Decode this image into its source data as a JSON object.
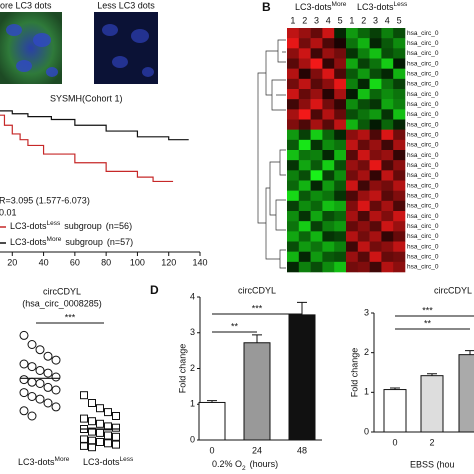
{
  "panel_labels": [
    "B",
    "D"
  ],
  "images": [
    {
      "label": "ore LC3 dots"
    },
    {
      "label": "Less LC3 dots"
    }
  ],
  "chart_data": [
    {
      "type": "survival",
      "title": "SYSMH(Cohort 1)",
      "annotations": [
        "R=3.095 (1.577-6.073)",
        "0.01"
      ],
      "xlim": [
        0,
        140
      ],
      "xticks": [
        20,
        40,
        60,
        80,
        100,
        120,
        140
      ],
      "ylim": [
        0,
        100
      ],
      "series": [
        {
          "name": "LC3-dots",
          "name_sup": "Less",
          "group": "subgroup",
          "n": "(n=56)",
          "color": "#c62828",
          "x": [
            0,
            8,
            15,
            20,
            25,
            30,
            40,
            60,
            80,
            100,
            110
          ],
          "y": [
            100,
            95,
            88,
            82,
            78,
            74,
            68,
            62,
            56,
            52,
            49
          ]
        },
        {
          "name": "LC3-dots",
          "name_sup": "More",
          "group": "subgroup",
          "n": "(n=57)",
          "color": "#111111",
          "x": [
            0,
            10,
            20,
            30,
            45,
            60,
            80,
            100,
            120
          ],
          "y": [
            100,
            98,
            96,
            94,
            92,
            88,
            84,
            80,
            78
          ]
        }
      ]
    },
    {
      "type": "dotplot",
      "title": "circCDYL",
      "subtitle": "(hsa_circ_0008285)",
      "annotation": "***",
      "categories": [
        "LC3-dots",
        "LC3-dots"
      ],
      "category_sups": [
        "More",
        "Less"
      ],
      "ylim": [
        0,
        10
      ],
      "markers": [
        "circle",
        "square"
      ],
      "means": [
        5.9,
        2.0
      ],
      "values": [
        [
          9.2,
          8.5,
          8.1,
          7.6,
          7.3,
          7.0,
          6.8,
          6.5,
          6.3,
          6.0,
          5.8,
          5.6,
          5.5,
          5.2,
          5.0,
          4.8,
          4.5,
          4.3,
          4.0,
          3.7,
          3.4,
          3.0
        ],
        [
          4.6,
          4.0,
          3.6,
          3.3,
          3.0,
          2.8,
          2.6,
          2.4,
          2.2,
          2.1,
          2.0,
          1.8,
          1.7,
          1.5,
          1.4,
          1.2,
          1.1,
          1.0,
          0.9,
          0.8,
          0.7,
          0.6
        ]
      ]
    },
    {
      "type": "heatmap",
      "zlim": [
        -2,
        2
      ],
      "high_color": "#ff1a1a",
      "low_color": "#1aff1a",
      "column_groups": [
        {
          "label": "LC3-dots",
          "sup": "More"
        },
        {
          "label": "LC3-dots",
          "sup": "Less"
        }
      ],
      "columns": [
        "1",
        "2",
        "3",
        "4",
        "5",
        "1",
        "2",
        "3",
        "4",
        "5"
      ],
      "rows": [
        "hsa_circ_0",
        "hsa_circ_0",
        "hsa_circ_0",
        "hsa_circ_0",
        "hsa_circ_0",
        "hsa_circ_0",
        "hsa_circ_0",
        "hsa_circ_0",
        "hsa_circ_0",
        "hsa_circ_0",
        "hsa_circ_0",
        "hsa_circ_0",
        "hsa_circ_0",
        "hsa_circ_0",
        "hsa_circ_0",
        "hsa_circ_0",
        "hsa_circ_0",
        "hsa_circ_0",
        "hsa_circ_0",
        "hsa_circ_0",
        "hsa_circ_0",
        "hsa_circ_0",
        "hsa_circ_0",
        "hsa_circ_0"
      ],
      "values": [
        [
          1.5,
          1.2,
          0.8,
          1.6,
          -0.3,
          -1.2,
          -0.8,
          -0.5,
          -1.0,
          -0.6
        ],
        [
          1.8,
          0.9,
          1.4,
          0.6,
          0.2,
          -0.9,
          -1.4,
          -0.3,
          -0.7,
          -1.1
        ],
        [
          1.1,
          1.6,
          0.5,
          1.2,
          0.9,
          -0.4,
          -1.0,
          -1.5,
          -0.6,
          -0.8
        ],
        [
          0.7,
          1.3,
          1.9,
          0.4,
          1.1,
          -1.3,
          -0.5,
          -0.9,
          -1.6,
          -0.2
        ],
        [
          1.4,
          0.3,
          1.0,
          1.7,
          0.6,
          -0.7,
          -1.2,
          -0.6,
          -0.3,
          -1.4
        ],
        [
          0.9,
          1.5,
          0.7,
          1.1,
          1.8,
          -1.0,
          -0.3,
          -1.7,
          -0.9,
          -0.5
        ],
        [
          1.6,
          0.8,
          1.2,
          0.3,
          1.3,
          -0.2,
          -1.5,
          -0.8,
          -1.1,
          -0.9
        ],
        [
          0.5,
          1.1,
          1.7,
          0.9,
          0.4,
          -1.1,
          -0.6,
          -0.4,
          -1.3,
          -1.0
        ],
        [
          1.3,
          1.9,
          0.6,
          1.4,
          0.8,
          -0.6,
          -0.9,
          -1.2,
          -0.4,
          -1.5
        ],
        [
          1.0,
          0.6,
          1.3,
          0.7,
          1.5,
          -1.4,
          -0.7,
          -0.2,
          -0.8,
          -0.3
        ],
        [
          -1.2,
          -0.5,
          -1.6,
          -0.8,
          -0.3,
          1.1,
          1.4,
          0.6,
          1.7,
          0.9
        ],
        [
          -0.7,
          -1.8,
          -0.4,
          -1.1,
          -0.9,
          1.5,
          0.8,
          1.2,
          0.5,
          1.3
        ],
        [
          -1.5,
          -0.9,
          -1.0,
          -0.3,
          -1.4,
          0.7,
          1.6,
          1.0,
          1.2,
          0.4
        ],
        [
          -0.4,
          -1.3,
          -0.7,
          -1.6,
          -0.6,
          1.2,
          0.9,
          1.8,
          0.6,
          1.1
        ],
        [
          -1.0,
          -0.6,
          -1.9,
          -0.5,
          -1.1,
          0.9,
          1.3,
          0.4,
          1.5,
          0.8
        ],
        [
          -0.8,
          -1.4,
          -0.3,
          -1.2,
          -0.7,
          1.6,
          0.5,
          1.1,
          0.9,
          1.4
        ],
        [
          -1.7,
          -0.7,
          -1.1,
          -0.9,
          -0.4,
          0.6,
          1.2,
          1.5,
          0.7,
          1.0
        ],
        [
          -0.5,
          -1.1,
          -0.8,
          -1.5,
          -1.3,
          1.0,
          1.7,
          0.8,
          1.3,
          0.6
        ],
        [
          -1.1,
          -0.4,
          -1.3,
          -0.6,
          -0.8,
          1.3,
          0.6,
          1.4,
          1.0,
          1.6
        ],
        [
          -0.9,
          -1.6,
          -0.5,
          -1.0,
          -1.2,
          0.8,
          1.1,
          0.7,
          1.6,
          1.2
        ],
        [
          -1.3,
          -0.8,
          -1.4,
          -0.4,
          -0.5,
          1.4,
          0.9,
          1.3,
          0.4,
          0.8
        ],
        [
          -0.6,
          -1.2,
          -0.9,
          -1.3,
          -1.0,
          0.5,
          1.5,
          0.9,
          1.1,
          1.5
        ],
        [
          -1.4,
          -0.3,
          -1.2,
          -0.7,
          -0.6,
          1.2,
          0.7,
          1.6,
          0.8,
          0.9
        ],
        [
          -0.3,
          -1.0,
          -0.6,
          -1.1,
          -1.5,
          0.9,
          1.0,
          0.5,
          1.4,
          1.1
        ]
      ]
    },
    {
      "type": "bar",
      "title": "circCDYL",
      "ylabel": "Fold change",
      "xlabel": "0.2% O",
      "xlabel_sub": "2",
      "xlabel_unit": "(hours)",
      "categories": [
        "0",
        "24",
        "48"
      ],
      "values": [
        1.05,
        2.72,
        3.5
      ],
      "errors": [
        0.05,
        0.22,
        0.35
      ],
      "colors": [
        "#ffffff",
        "#999999",
        "#111111"
      ],
      "ylim": [
        0,
        4
      ],
      "yticks": [
        0,
        1,
        2,
        3,
        4
      ],
      "annotations": [
        "**",
        "***"
      ]
    },
    {
      "type": "bar",
      "title": "circCDYL",
      "ylabel": "Fold change",
      "xlabel": "EBSS (hou",
      "categories": [
        "0",
        "2",
        null
      ],
      "values": [
        1.07,
        1.42,
        1.95
      ],
      "errors": [
        0.04,
        0.05,
        0.1
      ],
      "colors": [
        "#ffffff",
        "#dddddd",
        "#aaaaaa"
      ],
      "ylim": [
        0,
        3
      ],
      "yticks": [
        0,
        1,
        2,
        3
      ],
      "annotations": [
        "***",
        "**"
      ]
    }
  ]
}
